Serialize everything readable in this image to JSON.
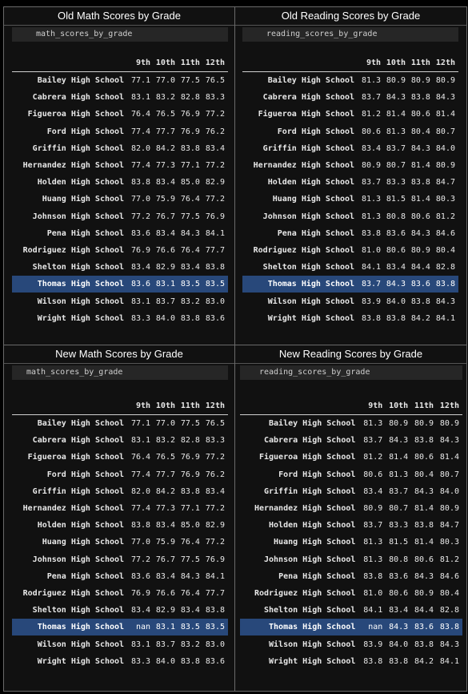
{
  "panels": [
    {
      "title": "Old Math Scores by Grade",
      "variable": "math_scores_by_grade",
      "columns": [
        "9th",
        "10th",
        "11th",
        "12th"
      ],
      "rows": [
        {
          "school": "Bailey High School",
          "values": [
            "77.1",
            "77.0",
            "77.5",
            "76.5"
          ]
        },
        {
          "school": "Cabrera High School",
          "values": [
            "83.1",
            "83.2",
            "82.8",
            "83.3"
          ]
        },
        {
          "school": "Figueroa High School",
          "values": [
            "76.4",
            "76.5",
            "76.9",
            "77.2"
          ]
        },
        {
          "school": "Ford High School",
          "values": [
            "77.4",
            "77.7",
            "76.9",
            "76.2"
          ]
        },
        {
          "school": "Griffin High School",
          "values": [
            "82.0",
            "84.2",
            "83.8",
            "83.4"
          ]
        },
        {
          "school": "Hernandez High School",
          "values": [
            "77.4",
            "77.3",
            "77.1",
            "77.2"
          ]
        },
        {
          "school": "Holden High School",
          "values": [
            "83.8",
            "83.4",
            "85.0",
            "82.9"
          ]
        },
        {
          "school": "Huang High School",
          "values": [
            "77.0",
            "75.9",
            "76.4",
            "77.2"
          ]
        },
        {
          "school": "Johnson High School",
          "values": [
            "77.2",
            "76.7",
            "77.5",
            "76.9"
          ]
        },
        {
          "school": "Pena High School",
          "values": [
            "83.6",
            "83.4",
            "84.3",
            "84.1"
          ]
        },
        {
          "school": "Rodriguez High School",
          "values": [
            "76.9",
            "76.6",
            "76.4",
            "77.7"
          ]
        },
        {
          "school": "Shelton High School",
          "values": [
            "83.4",
            "82.9",
            "83.4",
            "83.8"
          ]
        },
        {
          "school": "Thomas High School",
          "values": [
            "83.6",
            "83.1",
            "83.5",
            "83.5"
          ]
        },
        {
          "school": "Wilson High School",
          "values": [
            "83.1",
            "83.7",
            "83.2",
            "83.0"
          ]
        },
        {
          "school": "Wright High School",
          "values": [
            "83.3",
            "84.0",
            "83.8",
            "83.6"
          ]
        }
      ]
    },
    {
      "title": "Old Reading Scores by Grade",
      "variable": "reading_scores_by_grade",
      "columns": [
        "9th",
        "10th",
        "11th",
        "12th"
      ],
      "rows": [
        {
          "school": "Bailey High School",
          "values": [
            "81.3",
            "80.9",
            "80.9",
            "80.9"
          ]
        },
        {
          "school": "Cabrera High School",
          "values": [
            "83.7",
            "84.3",
            "83.8",
            "84.3"
          ]
        },
        {
          "school": "Figueroa High School",
          "values": [
            "81.2",
            "81.4",
            "80.6",
            "81.4"
          ]
        },
        {
          "school": "Ford High School",
          "values": [
            "80.6",
            "81.3",
            "80.4",
            "80.7"
          ]
        },
        {
          "school": "Griffin High School",
          "values": [
            "83.4",
            "83.7",
            "84.3",
            "84.0"
          ]
        },
        {
          "school": "Hernandez High School",
          "values": [
            "80.9",
            "80.7",
            "81.4",
            "80.9"
          ]
        },
        {
          "school": "Holden High School",
          "values": [
            "83.7",
            "83.3",
            "83.8",
            "84.7"
          ]
        },
        {
          "school": "Huang High School",
          "values": [
            "81.3",
            "81.5",
            "81.4",
            "80.3"
          ]
        },
        {
          "school": "Johnson High School",
          "values": [
            "81.3",
            "80.8",
            "80.6",
            "81.2"
          ]
        },
        {
          "school": "Pena High School",
          "values": [
            "83.8",
            "83.6",
            "84.3",
            "84.6"
          ]
        },
        {
          "school": "Rodriguez High School",
          "values": [
            "81.0",
            "80.6",
            "80.9",
            "80.4"
          ]
        },
        {
          "school": "Shelton High School",
          "values": [
            "84.1",
            "83.4",
            "84.4",
            "82.8"
          ]
        },
        {
          "school": "Thomas High School",
          "values": [
            "83.7",
            "84.3",
            "83.6",
            "83.8"
          ]
        },
        {
          "school": "Wilson High School",
          "values": [
            "83.9",
            "84.0",
            "83.8",
            "84.3"
          ]
        },
        {
          "school": "Wright High School",
          "values": [
            "83.8",
            "83.8",
            "84.2",
            "84.1"
          ]
        }
      ]
    },
    {
      "title": "New Math Scores by Grade",
      "variable": "math_scores_by_grade",
      "columns": [
        "9th",
        "10th",
        "11th",
        "12th"
      ],
      "rows": [
        {
          "school": "Bailey High School",
          "values": [
            "77.1",
            "77.0",
            "77.5",
            "76.5"
          ]
        },
        {
          "school": "Cabrera High School",
          "values": [
            "83.1",
            "83.2",
            "82.8",
            "83.3"
          ]
        },
        {
          "school": "Figueroa High School",
          "values": [
            "76.4",
            "76.5",
            "76.9",
            "77.2"
          ]
        },
        {
          "school": "Ford High School",
          "values": [
            "77.4",
            "77.7",
            "76.9",
            "76.2"
          ]
        },
        {
          "school": "Griffin High School",
          "values": [
            "82.0",
            "84.2",
            "83.8",
            "83.4"
          ]
        },
        {
          "school": "Hernandez High School",
          "values": [
            "77.4",
            "77.3",
            "77.1",
            "77.2"
          ]
        },
        {
          "school": "Holden High School",
          "values": [
            "83.8",
            "83.4",
            "85.0",
            "82.9"
          ]
        },
        {
          "school": "Huang High School",
          "values": [
            "77.0",
            "75.9",
            "76.4",
            "77.2"
          ]
        },
        {
          "school": "Johnson High School",
          "values": [
            "77.2",
            "76.7",
            "77.5",
            "76.9"
          ]
        },
        {
          "school": "Pena High School",
          "values": [
            "83.6",
            "83.4",
            "84.3",
            "84.1"
          ]
        },
        {
          "school": "Rodriguez High School",
          "values": [
            "76.9",
            "76.6",
            "76.4",
            "77.7"
          ]
        },
        {
          "school": "Shelton High School",
          "values": [
            "83.4",
            "82.9",
            "83.4",
            "83.8"
          ]
        },
        {
          "school": "Thomas High School",
          "values": [
            "nan",
            "83.1",
            "83.5",
            "83.5"
          ]
        },
        {
          "school": "Wilson High School",
          "values": [
            "83.1",
            "83.7",
            "83.2",
            "83.0"
          ]
        },
        {
          "school": "Wright High School",
          "values": [
            "83.3",
            "84.0",
            "83.8",
            "83.6"
          ]
        }
      ]
    },
    {
      "title": "New Reading Scores by Grade",
      "variable": "reading_scores_by_grade",
      "columns": [
        "9th",
        "10th",
        "11th",
        "12th"
      ],
      "rows": [
        {
          "school": "Bailey High School",
          "values": [
            "81.3",
            "80.9",
            "80.9",
            "80.9"
          ]
        },
        {
          "school": "Cabrera High School",
          "values": [
            "83.7",
            "84.3",
            "83.8",
            "84.3"
          ]
        },
        {
          "school": "Figueroa High School",
          "values": [
            "81.2",
            "81.4",
            "80.6",
            "81.4"
          ]
        },
        {
          "school": "Ford High School",
          "values": [
            "80.6",
            "81.3",
            "80.4",
            "80.7"
          ]
        },
        {
          "school": "Griffin High School",
          "values": [
            "83.4",
            "83.7",
            "84.3",
            "84.0"
          ]
        },
        {
          "school": "Hernandez High School",
          "values": [
            "80.9",
            "80.7",
            "81.4",
            "80.9"
          ]
        },
        {
          "school": "Holden High School",
          "values": [
            "83.7",
            "83.3",
            "83.8",
            "84.7"
          ]
        },
        {
          "school": "Huang High School",
          "values": [
            "81.3",
            "81.5",
            "81.4",
            "80.3"
          ]
        },
        {
          "school": "Johnson High School",
          "values": [
            "81.3",
            "80.8",
            "80.6",
            "81.2"
          ]
        },
        {
          "school": "Pena High School",
          "values": [
            "83.8",
            "83.6",
            "84.3",
            "84.6"
          ]
        },
        {
          "school": "Rodriguez High School",
          "values": [
            "81.0",
            "80.6",
            "80.9",
            "80.4"
          ]
        },
        {
          "school": "Shelton High School",
          "values": [
            "84.1",
            "83.4",
            "84.4",
            "82.8"
          ]
        },
        {
          "school": "Thomas High School",
          "values": [
            "nan",
            "84.3",
            "83.6",
            "83.8"
          ]
        },
        {
          "school": "Wilson High School",
          "values": [
            "83.9",
            "84.0",
            "83.8",
            "84.3"
          ]
        },
        {
          "school": "Wright High School",
          "values": [
            "83.8",
            "83.8",
            "84.2",
            "84.1"
          ]
        }
      ]
    }
  ],
  "selected_school": "Thomas High School",
  "colors": {
    "background": "#000000",
    "panel": "#111111",
    "variable_box": "#262626",
    "selected_row": "#28487a",
    "text": "#e8e8e8",
    "border": "#6a6a6a"
  }
}
